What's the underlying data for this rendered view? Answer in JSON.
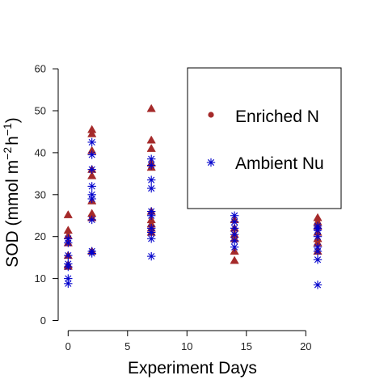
{
  "chart_data": {
    "type": "scatter",
    "title": "",
    "xlabel": "Experiment Days",
    "ylabel": "SOD (mmol m",
    "ylabel_unit_m_exp": "−2",
    "ylabel_unit_h": "h",
    "ylabel_unit_h_exp": "−1",
    "ylabel_close": ")",
    "xlim": [
      0,
      21
    ],
    "ylim": [
      0,
      60
    ],
    "x_ticks": [
      0,
      5,
      10,
      15,
      20
    ],
    "y_ticks": [
      0,
      10,
      20,
      30,
      40,
      50,
      60
    ],
    "grid": false,
    "legend_position": "top-right",
    "series": [
      {
        "name": "Enriched N",
        "marker": "triangle",
        "color": "#a52a2a",
        "points": [
          [
            0,
            25.2
          ],
          [
            0,
            21.5
          ],
          [
            0,
            20.2
          ],
          [
            0,
            18.5
          ],
          [
            0,
            15.5
          ],
          [
            0,
            13.3
          ],
          [
            0,
            12.9
          ],
          [
            2,
            45.5
          ],
          [
            2,
            44.5
          ],
          [
            2,
            40.5
          ],
          [
            2,
            36.0
          ],
          [
            2,
            34.5
          ],
          [
            2,
            28.5
          ],
          [
            2,
            25.5
          ],
          [
            2,
            24.5
          ],
          [
            2,
            16.5
          ],
          [
            7,
            50.5
          ],
          [
            7,
            43.0
          ],
          [
            7,
            41.0
          ],
          [
            7,
            37.5
          ],
          [
            7,
            36.5
          ],
          [
            7,
            26.0
          ],
          [
            7,
            24.0
          ],
          [
            7,
            23.0
          ],
          [
            7,
            22.0
          ],
          [
            7,
            21.0
          ],
          [
            14,
            24.0
          ],
          [
            14,
            22.0
          ],
          [
            14,
            20.5
          ],
          [
            14,
            19.5
          ],
          [
            14,
            16.5
          ],
          [
            14,
            14.3
          ],
          [
            21,
            24.5
          ],
          [
            21,
            23.5
          ],
          [
            21,
            22.5
          ],
          [
            21,
            21.0
          ],
          [
            21,
            19.5
          ],
          [
            21,
            18.5
          ],
          [
            21,
            16.5
          ]
        ]
      },
      {
        "name": "Ambient Nu",
        "marker": "asterisk",
        "color": "#0000cc",
        "points": [
          [
            0,
            19.5
          ],
          [
            0,
            18.5
          ],
          [
            0,
            15.5
          ],
          [
            0,
            13.5
          ],
          [
            0,
            12.8
          ],
          [
            0,
            10.0
          ],
          [
            0,
            8.8
          ],
          [
            2,
            42.5
          ],
          [
            2,
            39.5
          ],
          [
            2,
            36.0
          ],
          [
            2,
            32.0
          ],
          [
            2,
            30.0
          ],
          [
            2,
            29.0
          ],
          [
            2,
            24.0
          ],
          [
            2,
            16.5
          ],
          [
            2,
            16.0
          ],
          [
            7,
            38.5
          ],
          [
            7,
            37.0
          ],
          [
            7,
            33.5
          ],
          [
            7,
            31.5
          ],
          [
            7,
            26.0
          ],
          [
            7,
            25.0
          ],
          [
            7,
            22.0
          ],
          [
            7,
            21.0
          ],
          [
            7,
            19.5
          ],
          [
            7,
            15.3
          ],
          [
            14,
            25.0
          ],
          [
            14,
            23.5
          ],
          [
            14,
            22.0
          ],
          [
            14,
            20.5
          ],
          [
            14,
            19.0
          ],
          [
            14,
            17.5
          ],
          [
            21,
            22.5
          ],
          [
            21,
            22.0
          ],
          [
            21,
            21.5
          ],
          [
            21,
            20.0
          ],
          [
            21,
            17.5
          ],
          [
            21,
            16.5
          ],
          [
            21,
            14.5
          ],
          [
            21,
            8.5
          ]
        ]
      }
    ]
  }
}
